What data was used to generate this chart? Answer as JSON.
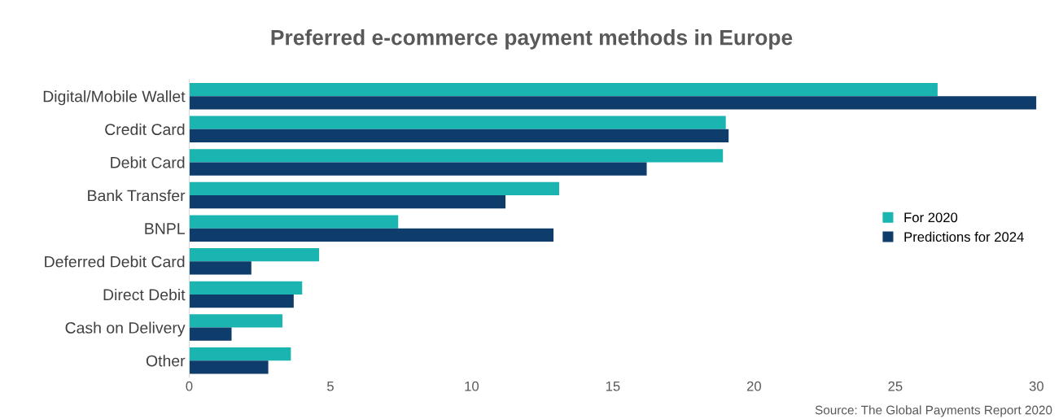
{
  "chart_data": {
    "type": "bar",
    "orientation": "horizontal",
    "title": "Preferred e-commerce payment methods in Europe",
    "categories": [
      "Digital/Mobile Wallet",
      "Credit Card",
      "Debit Card",
      "Bank Transfer",
      "BNPL",
      "Deferred Debit Card",
      "Direct Debit",
      "Cash on Delivery",
      "Other"
    ],
    "series": [
      {
        "name": "For 2020",
        "color": "#1ab5b0",
        "values": [
          26.5,
          19.0,
          18.9,
          13.1,
          7.4,
          4.6,
          4.0,
          3.3,
          3.6
        ]
      },
      {
        "name": "Predictions for 2024",
        "color": "#0e3d6b",
        "values": [
          30.0,
          19.1,
          16.2,
          11.2,
          12.9,
          2.2,
          3.7,
          1.5,
          2.8
        ]
      }
    ],
    "xlim": [
      0,
      30
    ],
    "xticks": [
      0,
      5,
      10,
      15,
      20,
      25,
      30
    ],
    "grid": false,
    "legend": "center right",
    "annotations": [
      "Source: The Global Payments Report 2020"
    ]
  }
}
